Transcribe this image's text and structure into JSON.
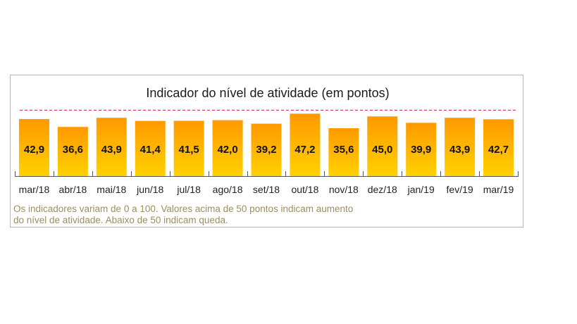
{
  "chart_data": {
    "type": "bar",
    "title": "Indicador do nível de atividade (em pontos)",
    "categories": [
      "mar/18",
      "abr/18",
      "mai/18",
      "jun/18",
      "jul/18",
      "ago/18",
      "set/18",
      "out/18",
      "nov/18",
      "dez/18",
      "jan/19",
      "fev/19",
      "mar/19"
    ],
    "values": [
      42.9,
      36.6,
      43.9,
      41.4,
      41.5,
      42.0,
      39.2,
      47.2,
      35.6,
      45.0,
      39.9,
      43.9,
      42.7
    ],
    "value_labels": [
      "42,9",
      "36,6",
      "43,9",
      "41,4",
      "41,5",
      "42,0",
      "39,2",
      "47,2",
      "35,6",
      "45,0",
      "39,9",
      "43,9",
      "42,7"
    ],
    "reference_line": 50,
    "ylim": [
      0,
      100
    ],
    "grid": false,
    "legend": "none",
    "colors": {
      "bar_top": "#ff9900",
      "bar_bottom": "#ffd200",
      "reference_line": "#cc1f3a",
      "note_text": "#9c8e5e"
    }
  },
  "note": {
    "line1": "Os indicadores variam de 0 a 100. Valores acima de 50 pontos indicam aumento",
    "line2": "do nível de atividade. Abaixo de 50 indicam queda."
  }
}
